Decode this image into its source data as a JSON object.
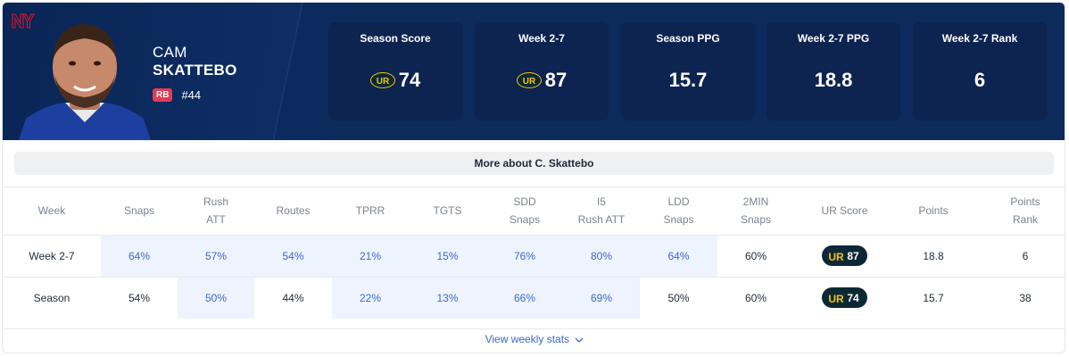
{
  "player": {
    "first_name": "CAM",
    "last_name": "SKATTEBO",
    "position": "RB",
    "jersey": "#44",
    "team_logo_icon": "ny-giants-logo-icon"
  },
  "stat_boxes": [
    {
      "label": "Season Score",
      "value": "74",
      "ur_badge": true
    },
    {
      "label": "Week 2-7",
      "value": "87",
      "ur_badge": true
    },
    {
      "label": "Season PPG",
      "value": "15.7",
      "ur_badge": false
    },
    {
      "label": "Week 2-7 PPG",
      "value": "18.8",
      "ur_badge": false
    },
    {
      "label": "Week 2-7 Rank",
      "value": "6",
      "ur_badge": false
    }
  ],
  "more_about": "More about C. Skattebo",
  "table": {
    "headers": [
      [
        "Week"
      ],
      [
        "Snaps"
      ],
      [
        "Rush",
        "ATT"
      ],
      [
        "Routes"
      ],
      [
        "TPRR"
      ],
      [
        "TGTS"
      ],
      [
        "SDD",
        "Snaps"
      ],
      [
        "I5",
        "Rush ATT"
      ],
      [
        "LDD",
        "Snaps"
      ],
      [
        "2MIN",
        "Snaps"
      ],
      [
        "UR Score"
      ],
      [
        "Points"
      ],
      [
        "Points",
        "Rank"
      ]
    ],
    "rows": [
      {
        "week": "Week 2-7",
        "snaps": "64%",
        "rush_att": "57%",
        "routes": "54%",
        "tprr": "21%",
        "tgts": "15%",
        "sdd": "76%",
        "i5": "80%",
        "ldd": "64%",
        "two_min": "60%",
        "ur_score": "87",
        "points": "18.8",
        "rank": "6"
      },
      {
        "week": "Season",
        "snaps": "54%",
        "rush_att": "50%",
        "routes": "44%",
        "tprr": "22%",
        "tgts": "13%",
        "sdd": "66%",
        "i5": "69%",
        "ldd": "50%",
        "two_min": "60%",
        "ur_score": "74",
        "points": "15.7",
        "rank": "38"
      }
    ]
  },
  "view_weekly": "View weekly stats",
  "colors": {
    "hero_bg": "#0c2a5c",
    "stat_box_bg": "#0d2350",
    "position_badge": "#e23b54",
    "highlight_cell": "#eef4fd",
    "link": "#3d67c9",
    "ur_gold": "#f2c318"
  }
}
